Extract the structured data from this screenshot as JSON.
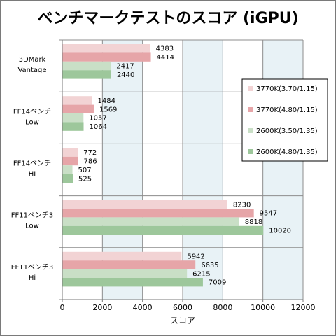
{
  "chart_data": {
    "type": "bar",
    "orientation": "horizontal",
    "title": "ベンチマークテストのスコア (iGPU)",
    "xlabel": "スコア",
    "ylabel": "",
    "xlim": [
      0,
      12000
    ],
    "xticks": [
      0,
      2000,
      4000,
      6000,
      8000,
      10000,
      12000
    ],
    "grid": true,
    "legend_position": "right",
    "categories": [
      [
        "3DMark",
        "Vantage"
      ],
      [
        "FF14ベンチ",
        "Low"
      ],
      [
        "FF14ベンチ",
        "HI"
      ],
      [
        "FF11ベンチ3",
        "Low"
      ],
      [
        "FF11ベンチ3",
        "Hi"
      ]
    ],
    "series": [
      {
        "name": "3770K(3.70/1.15)",
        "color": "#f2d3d4",
        "values": [
          4383,
          1484,
          772,
          8230,
          5942
        ]
      },
      {
        "name": "3770K(4.80/1.15)",
        "color": "#e6a5a8",
        "values": [
          4414,
          1569,
          786,
          9547,
          6635
        ]
      },
      {
        "name": "2600K(3.50/1.35)",
        "color": "#c9dfc6",
        "values": [
          2417,
          1057,
          507,
          8818,
          6215
        ]
      },
      {
        "name": "2600K(4.80/1.35)",
        "color": "#9dc79b",
        "values": [
          2440,
          1064,
          525,
          10020,
          7009
        ]
      }
    ]
  }
}
